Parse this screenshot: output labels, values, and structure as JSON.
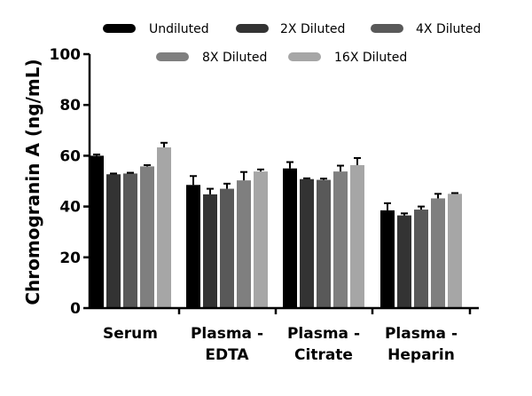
{
  "chart_data": {
    "type": "bar",
    "title": "",
    "xlabel": "",
    "ylabel": "Chromogranin A (ng/mL)",
    "ylim": [
      0,
      100
    ],
    "yticks": [
      0,
      20,
      40,
      60,
      80,
      100
    ],
    "grid": false,
    "legend_position": "top",
    "categories": [
      [
        "Serum"
      ],
      [
        "Plasma -",
        "EDTA"
      ],
      [
        "Plasma -",
        "Citrate"
      ],
      [
        "Plasma -",
        "Heparin"
      ]
    ],
    "series": [
      {
        "name": "Undiluted",
        "color": "#000000",
        "values": [
          60.0,
          48.5,
          55.0,
          38.5
        ],
        "errors": [
          0.5,
          3.5,
          2.5,
          2.8
        ]
      },
      {
        "name": "2X Diluted",
        "color": "#333333",
        "values": [
          52.7,
          44.8,
          50.8,
          36.5
        ],
        "errors": [
          0.3,
          2.2,
          0.3,
          0.8
        ]
      },
      {
        "name": "4X Diluted",
        "color": "#595959",
        "values": [
          53.0,
          47.0,
          50.5,
          38.8
        ],
        "errors": [
          0.3,
          2.0,
          0.5,
          1.2
        ]
      },
      {
        "name": "8X Diluted",
        "color": "#7f7f7f",
        "values": [
          55.8,
          50.3,
          53.8,
          43.2
        ],
        "errors": [
          0.5,
          3.3,
          2.3,
          1.8
        ]
      },
      {
        "name": "16X Diluted",
        "color": "#a6a6a6",
        "values": [
          63.3,
          53.8,
          56.3,
          45.0
        ],
        "errors": [
          1.8,
          0.8,
          2.8,
          0.3
        ]
      }
    ]
  }
}
